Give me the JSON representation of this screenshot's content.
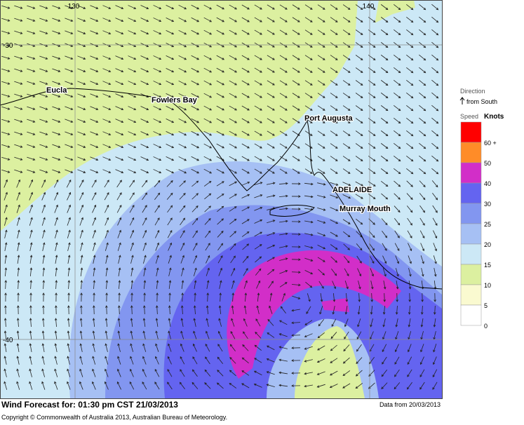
{
  "map": {
    "grid": {
      "lon": [
        130,
        140
      ],
      "lat": [
        -30,
        -40
      ]
    },
    "places": [
      {
        "name": "Eucla"
      },
      {
        "name": "Fowlers Bay"
      },
      {
        "name": "Port Augusta"
      },
      {
        "name": "ADELAIDE"
      },
      {
        "name": "Murray Mouth"
      }
    ],
    "footer": {
      "title": "Wind Forecast for: 01:30 pm CST 21/03/2013",
      "data_date": "Data from 20/03/2013",
      "copyright": "Copyright © Commonwealth of Australia 2013, Australian Bureau of Meteorology."
    }
  },
  "legend": {
    "direction_title": "Direction",
    "direction_text": "from South",
    "speed_title": "Speed",
    "unit": "Knots",
    "levels": [
      {
        "label": "60 +",
        "color": "#ff0000"
      },
      {
        "label": "50",
        "color": "#ff8c28"
      },
      {
        "label": "40",
        "color": "#d22ec8"
      },
      {
        "label": "30",
        "color": "#6464f0"
      },
      {
        "label": "25",
        "color": "#8296f0"
      },
      {
        "label": "20",
        "color": "#a6c0f4"
      },
      {
        "label": "15",
        "color": "#cce8f6"
      },
      {
        "label": "10",
        "color": "#dcf0a0"
      },
      {
        "label": "5",
        "color": "#fafad0"
      },
      {
        "label": "0",
        "color": "#ffffff"
      }
    ]
  }
}
